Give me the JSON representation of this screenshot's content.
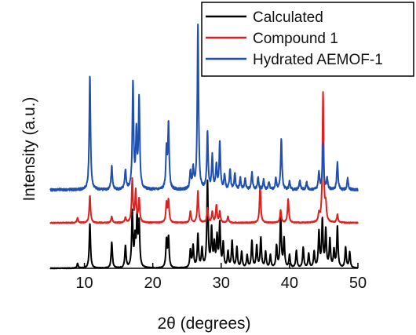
{
  "chart_data": {
    "type": "line",
    "title": "",
    "xlabel": "2θ (degrees)",
    "ylabel": "Intensity (a.u.)",
    "xlim": [
      5,
      50
    ],
    "xticks": [
      10,
      20,
      30,
      40,
      50
    ],
    "yticks": [],
    "grid": false,
    "legend_position": "top-right",
    "legend_frame": true,
    "series": [
      {
        "name": "Calculated",
        "color": "#000000",
        "baseline": 0,
        "noise": 0.4,
        "peaks": [
          {
            "x": 9.0,
            "h": 6
          },
          {
            "x": 10.8,
            "h": 57
          },
          {
            "x": 14.0,
            "h": 33
          },
          {
            "x": 16.0,
            "h": 28
          },
          {
            "x": 17.0,
            "h": 70
          },
          {
            "x": 17.4,
            "h": 35
          },
          {
            "x": 17.7,
            "h": 60
          },
          {
            "x": 18.0,
            "h": 55
          },
          {
            "x": 22.0,
            "h": 35
          },
          {
            "x": 22.3,
            "h": 38
          },
          {
            "x": 25.5,
            "h": 22
          },
          {
            "x": 25.9,
            "h": 28
          },
          {
            "x": 26.6,
            "h": 42
          },
          {
            "x": 27.2,
            "h": 24
          },
          {
            "x": 28.0,
            "h": 110
          },
          {
            "x": 28.6,
            "h": 48
          },
          {
            "x": 29.0,
            "h": 28
          },
          {
            "x": 29.4,
            "h": 38
          },
          {
            "x": 29.8,
            "h": 55
          },
          {
            "x": 30.3,
            "h": 30
          },
          {
            "x": 31.0,
            "h": 20
          },
          {
            "x": 31.6,
            "h": 34
          },
          {
            "x": 32.3,
            "h": 26
          },
          {
            "x": 33.0,
            "h": 20
          },
          {
            "x": 33.8,
            "h": 16
          },
          {
            "x": 34.5,
            "h": 34
          },
          {
            "x": 35.2,
            "h": 28
          },
          {
            "x": 35.8,
            "h": 38
          },
          {
            "x": 36.5,
            "h": 20
          },
          {
            "x": 37.2,
            "h": 16
          },
          {
            "x": 38.1,
            "h": 28
          },
          {
            "x": 38.7,
            "h": 64
          },
          {
            "x": 39.2,
            "h": 36
          },
          {
            "x": 40.0,
            "h": 16
          },
          {
            "x": 41.0,
            "h": 22
          },
          {
            "x": 42.0,
            "h": 26
          },
          {
            "x": 42.8,
            "h": 18
          },
          {
            "x": 43.6,
            "h": 20
          },
          {
            "x": 44.3,
            "h": 45
          },
          {
            "x": 44.8,
            "h": 60
          },
          {
            "x": 45.3,
            "h": 48
          },
          {
            "x": 45.9,
            "h": 36
          },
          {
            "x": 46.5,
            "h": 22
          },
          {
            "x": 47.0,
            "h": 52
          },
          {
            "x": 48.2,
            "h": 26
          },
          {
            "x": 48.8,
            "h": 20
          }
        ]
      },
      {
        "name": "Compound 1",
        "color": "#e02020",
        "baseline": 58,
        "noise": 0.6,
        "peaks": [
          {
            "x": 9.0,
            "h": 6
          },
          {
            "x": 10.8,
            "h": 35
          },
          {
            "x": 14.0,
            "h": 8
          },
          {
            "x": 16.0,
            "h": 6
          },
          {
            "x": 17.0,
            "h": 55
          },
          {
            "x": 17.5,
            "h": 40
          },
          {
            "x": 18.0,
            "h": 30
          },
          {
            "x": 22.0,
            "h": 25
          },
          {
            "x": 22.3,
            "h": 28
          },
          {
            "x": 25.5,
            "h": 15
          },
          {
            "x": 26.6,
            "h": 40
          },
          {
            "x": 28.0,
            "h": 18
          },
          {
            "x": 28.7,
            "h": 14
          },
          {
            "x": 29.3,
            "h": 22
          },
          {
            "x": 29.8,
            "h": 14
          },
          {
            "x": 31.0,
            "h": 8
          },
          {
            "x": 35.7,
            "h": 47
          },
          {
            "x": 38.7,
            "h": 16
          },
          {
            "x": 39.8,
            "h": 30
          },
          {
            "x": 44.3,
            "h": 10
          },
          {
            "x": 44.9,
            "h": 165
          },
          {
            "x": 45.3,
            "h": 20
          },
          {
            "x": 47.0,
            "h": 10
          }
        ]
      },
      {
        "name": "Hydrated AEMOF-1",
        "color": "#1f4fb0",
        "baseline": 100,
        "noise": 1.6,
        "peaks": [
          {
            "x": 10.8,
            "h": 145
          },
          {
            "x": 14.0,
            "h": 30
          },
          {
            "x": 16.0,
            "h": 25
          },
          {
            "x": 17.1,
            "h": 135
          },
          {
            "x": 17.6,
            "h": 70
          },
          {
            "x": 18.0,
            "h": 115
          },
          {
            "x": 22.0,
            "h": 50
          },
          {
            "x": 22.3,
            "h": 82
          },
          {
            "x": 25.5,
            "h": 22
          },
          {
            "x": 25.9,
            "h": 25
          },
          {
            "x": 26.6,
            "h": 210
          },
          {
            "x": 28.0,
            "h": 72
          },
          {
            "x": 28.7,
            "h": 42
          },
          {
            "x": 29.3,
            "h": 30
          },
          {
            "x": 29.8,
            "h": 60
          },
          {
            "x": 30.5,
            "h": 18
          },
          {
            "x": 31.3,
            "h": 26
          },
          {
            "x": 32.0,
            "h": 20
          },
          {
            "x": 32.8,
            "h": 15
          },
          {
            "x": 33.5,
            "h": 14
          },
          {
            "x": 34.5,
            "h": 22
          },
          {
            "x": 35.4,
            "h": 15
          },
          {
            "x": 36.2,
            "h": 12
          },
          {
            "x": 37.0,
            "h": 10
          },
          {
            "x": 38.0,
            "h": 14
          },
          {
            "x": 38.8,
            "h": 65
          },
          {
            "x": 40.0,
            "h": 10
          },
          {
            "x": 41.5,
            "h": 12
          },
          {
            "x": 42.5,
            "h": 10
          },
          {
            "x": 44.3,
            "h": 22
          },
          {
            "x": 44.9,
            "h": 58
          },
          {
            "x": 45.5,
            "h": 14
          },
          {
            "x": 47.0,
            "h": 35
          },
          {
            "x": 48.5,
            "h": 14
          }
        ]
      }
    ]
  }
}
